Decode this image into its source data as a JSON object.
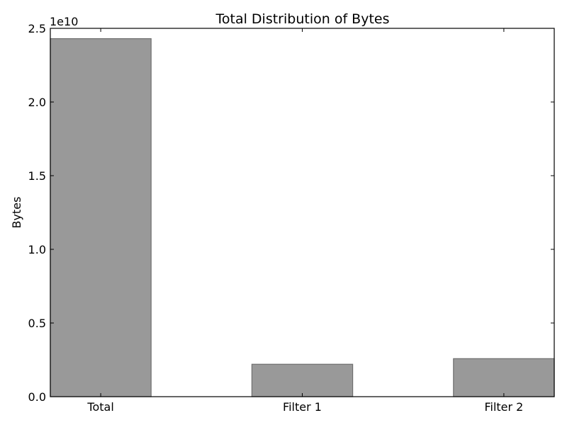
{
  "chart_data": {
    "type": "bar",
    "title": "Total Distribution of Bytes",
    "xlabel": "",
    "ylabel": "Bytes",
    "y_offset_label": "1e10",
    "categories": [
      "Total",
      "Filter 1",
      "Filter 2"
    ],
    "values": [
      24300000000,
      2200000000,
      2580000000
    ],
    "ylim": [
      0,
      25000000000
    ],
    "y_ticks": [
      0,
      5000000000,
      10000000000,
      15000000000,
      20000000000,
      25000000000
    ],
    "y_tick_labels": [
      "0.0",
      "0.5",
      "1.0",
      "1.5",
      "2.0",
      "2.5"
    ],
    "grid": false,
    "legend": "none",
    "bar_color": "#999999"
  }
}
